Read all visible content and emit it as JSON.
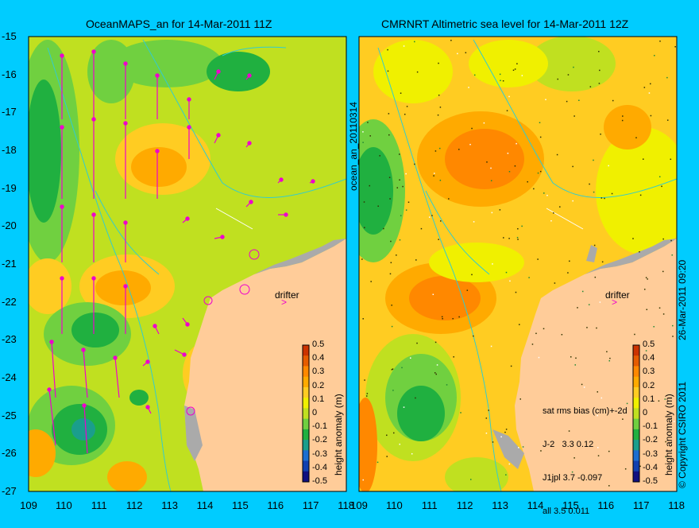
{
  "left_panel": {
    "title": "OceanMAPS_an for 14-Mar-2011 11Z",
    "side_label": "ocean_an_20110314",
    "drifter_label": "drifter",
    "colorbar_label": "height anomaly (m)"
  },
  "right_panel": {
    "title": "CMRNRT Altimetric sea level  for 14-Mar-2011 12Z",
    "side_label": "26-Mar-2011 09:20",
    "drifter_label": "drifter",
    "colorbar_label": "height anomaly (m)",
    "stats": {
      "header": "sat rms bias (cm)+-2d",
      "rows": [
        "J-2   3.3 0.12",
        "J1jpl 3.7 -0.097",
        "all 3.5 0.011"
      ]
    },
    "copyright": "© Copyright CSIRO 2011"
  },
  "y_axis": [
    "-15",
    "-16",
    "-17",
    "-18",
    "-19",
    "-20",
    "-21",
    "-22",
    "-23",
    "-24",
    "-25",
    "-26",
    "-27"
  ],
  "x_axis_left": [
    "109",
    "110",
    "111",
    "112",
    "113",
    "114",
    "115",
    "116",
    "117",
    "118"
  ],
  "x_axis_right": [
    "109",
    "110",
    "111",
    "112",
    "113",
    "114",
    "115",
    "116",
    "117",
    "118"
  ],
  "colorbar": {
    "ticks": [
      "0.5",
      "0.4",
      "0.3",
      "0.2",
      "0.1",
      "0",
      "-0.1",
      "-0.2",
      "-0.3",
      "-0.4",
      "-0.5"
    ],
    "colors": [
      "#cc3300",
      "#e65c00",
      "#ff8800",
      "#ffaa00",
      "#ffcc22",
      "#f0f000",
      "#c0e020",
      "#70d040",
      "#20b040",
      "#1a9e8c",
      "#1c6ed0",
      "#1040b0",
      "#101080"
    ]
  },
  "colors": {
    "background": "#00ccff",
    "land": "#ffcc99",
    "arrow": "#ee00cc",
    "coast_shelf": "#aaaaaa"
  }
}
